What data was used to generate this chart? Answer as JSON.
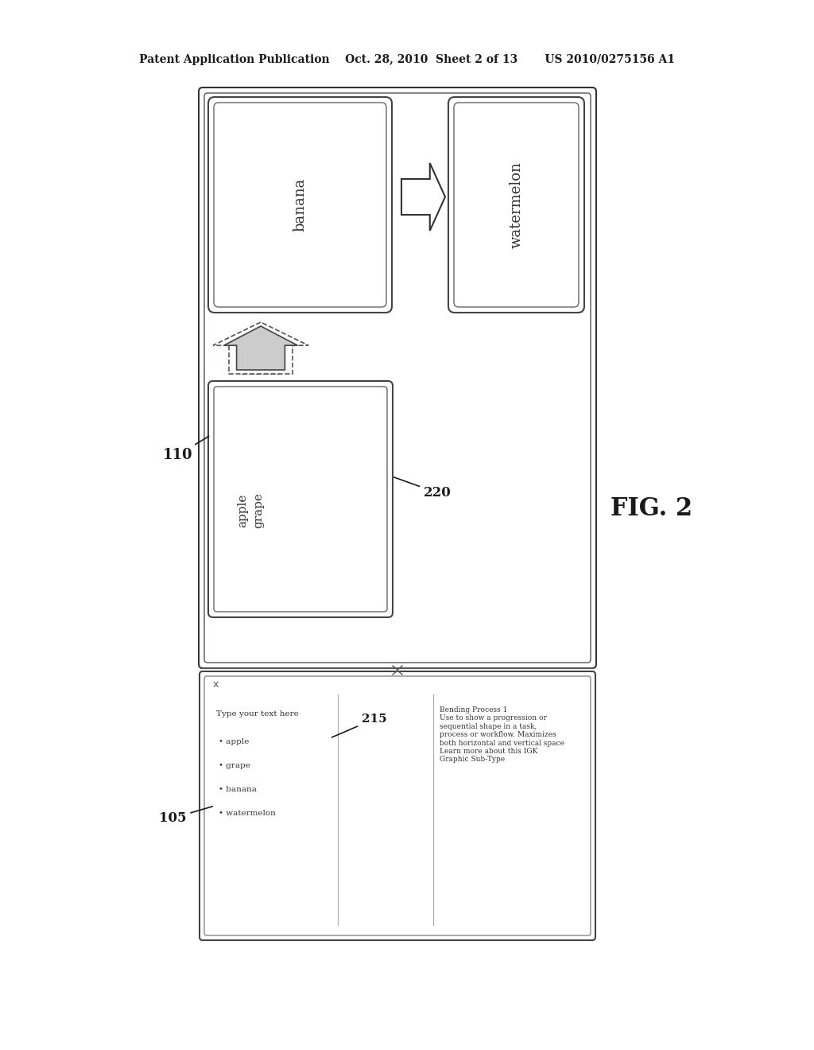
{
  "bg_color": "#ffffff",
  "header_text": "Patent Application Publication    Oct. 28, 2010  Sheet 2 of 13       US 2010/0275156 A1",
  "fig2_label": "FIG. 2",
  "label_110": "110",
  "label_220": "220",
  "label_105": "105",
  "label_215": "215",
  "text_banana": "banana",
  "text_watermelon": "watermelon",
  "text_apple": "apple",
  "text_grape": "grape",
  "bottom_type_text": "Type your text here",
  "bottom_bullet1": "• apple",
  "bottom_bullet2": "• grape",
  "bottom_bullet3": "• banana",
  "bottom_bullet4": "• watermelon",
  "bottom_right_text": "Bending Process 1\nUse to show a progression or\nsequential shape in a task,\nprocess or workflow. Maximizes\nboth horizontal and vertical space\nLearn more about this IGK\nGraphic Sub-Type"
}
